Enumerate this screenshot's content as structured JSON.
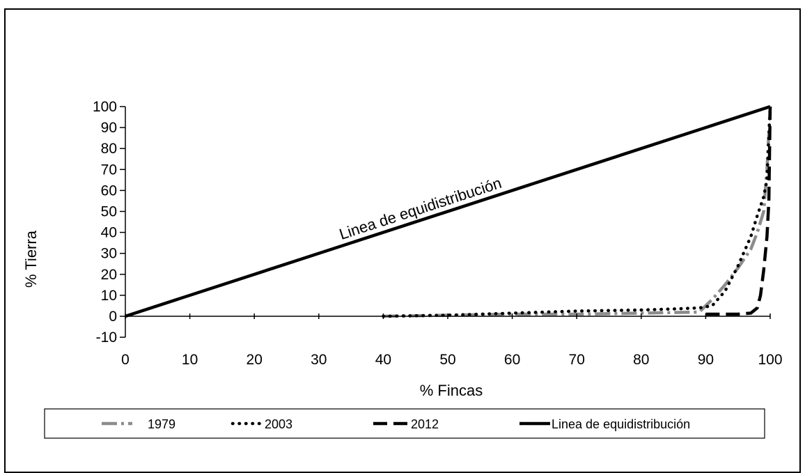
{
  "chart_data": {
    "type": "line",
    "title": "",
    "xlabel": "% Fincas",
    "ylabel": "% Tierra",
    "xlim": [
      0,
      100
    ],
    "ylim": [
      -10,
      100
    ],
    "xticks": [
      0,
      10,
      20,
      30,
      40,
      50,
      60,
      70,
      80,
      90,
      100
    ],
    "yticks": [
      -10,
      0,
      10,
      20,
      30,
      40,
      50,
      60,
      70,
      80,
      90,
      100
    ],
    "grid": false,
    "legend_position": "bottom",
    "annotation": "Linea de equidistribución",
    "series": [
      {
        "name": "1979",
        "style": "gray-dashdot",
        "color": "#8c8c8c",
        "x": [
          40,
          50,
          60,
          70,
          80,
          89,
          91,
          93,
          95,
          97,
          98,
          99,
          99.5,
          100
        ],
        "y": [
          0,
          0.5,
          1,
          1,
          1.5,
          2,
          8,
          15,
          23,
          32,
          40,
          50,
          70,
          100
        ]
      },
      {
        "name": "2003",
        "style": "dotted",
        "color": "#000000",
        "x": [
          40,
          50,
          60,
          70,
          80,
          85,
          89,
          91,
          93,
          95,
          97,
          98,
          99,
          99.5,
          100
        ],
        "y": [
          0,
          0.5,
          1.5,
          2.5,
          3,
          3.5,
          4,
          5,
          12,
          24,
          38,
          48,
          57,
          65,
          100
        ]
      },
      {
        "name": "2012",
        "style": "dashed",
        "color": "#000000",
        "x": [
          90,
          95,
          97,
          98,
          98.5,
          99,
          99.5,
          99.8,
          100
        ],
        "y": [
          1,
          1,
          1.5,
          4,
          10,
          22,
          38,
          55,
          100
        ]
      },
      {
        "name": "Linea de equidistribución",
        "style": "solid",
        "color": "#000000",
        "x": [
          0,
          100
        ],
        "y": [
          0,
          100
        ]
      }
    ]
  }
}
